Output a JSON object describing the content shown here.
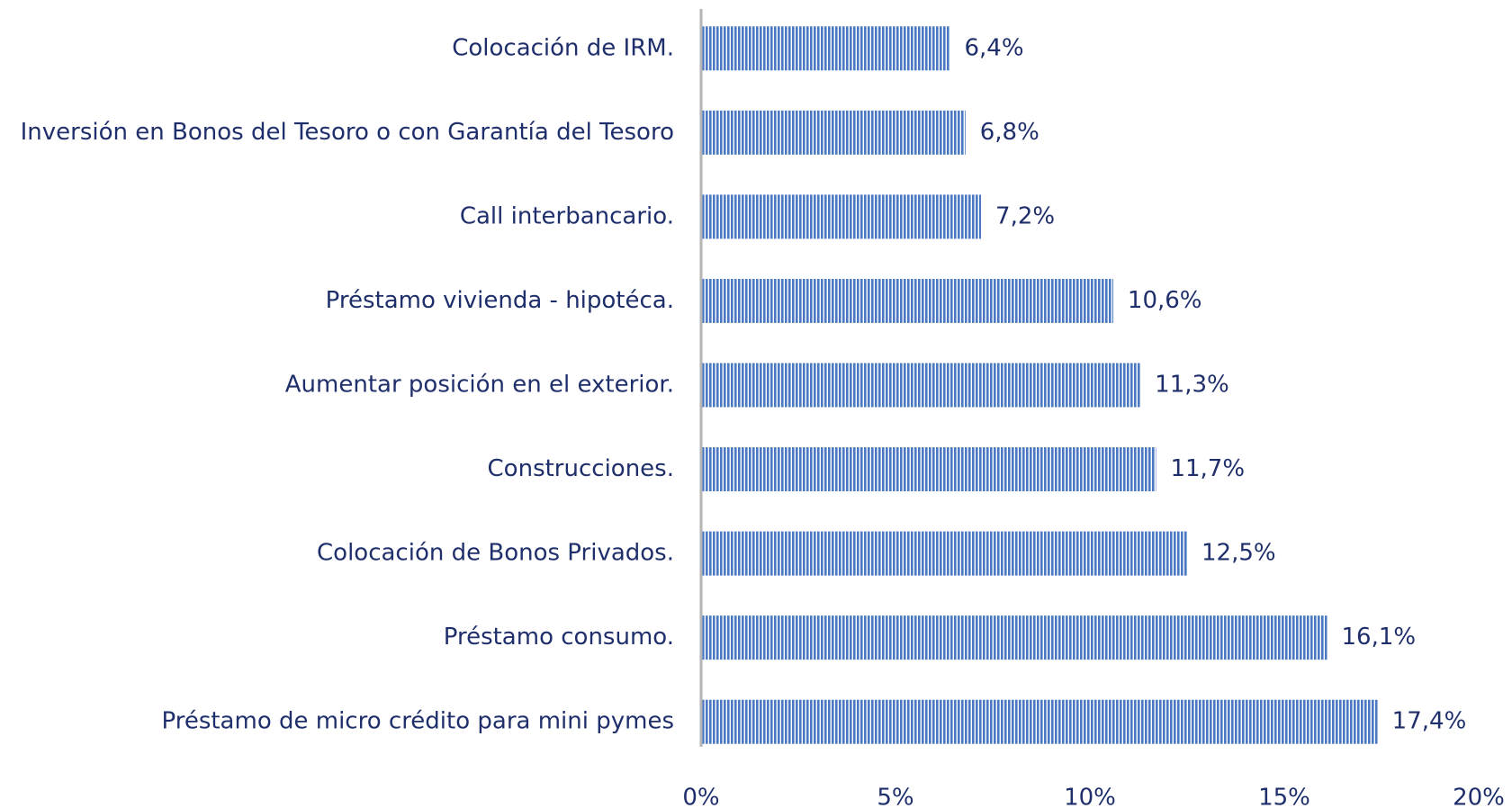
{
  "chart_data": {
    "type": "bar",
    "orientation": "horizontal",
    "categories": [
      "Colocación de IRM.",
      "Inversión en Bonos del Tesoro o con Garantía del Tesoro",
      "Call interbancario.",
      "Préstamo vivienda - hipotéca.",
      "Aumentar posición en el exterior.",
      "Construcciones.",
      "Colocación de Bonos Privados.",
      "Préstamo consumo.",
      "Préstamo de micro crédito para mini pymes"
    ],
    "values": [
      6.4,
      6.8,
      7.2,
      10.6,
      11.3,
      11.7,
      12.5,
      16.1,
      17.4
    ],
    "value_labels": [
      "6,4%",
      "6,8%",
      "7,2%",
      "10,6%",
      "11,3%",
      "11,7%",
      "12,5%",
      "16,1%",
      "17,4%"
    ],
    "color": "#4a78c2",
    "xlim": [
      0,
      20
    ],
    "xticks": [
      {
        "value": 0,
        "label": "0%"
      },
      {
        "value": 5,
        "label": "5%"
      },
      {
        "value": 10,
        "label": "10%"
      },
      {
        "value": 15,
        "label": "15%"
      },
      {
        "value": 20,
        "label": "20%"
      }
    ],
    "grid": false
  }
}
